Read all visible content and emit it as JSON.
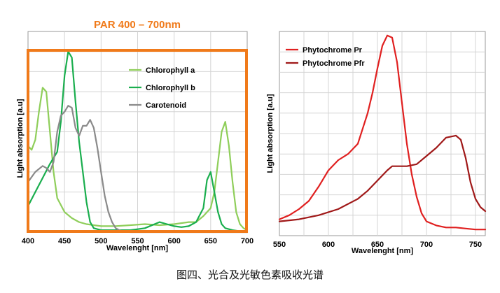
{
  "caption": "图四、光合及光敏色素吸收光谱",
  "chart_data": [
    {
      "type": "line",
      "annotation": "PAR 400 – 700nm",
      "annotation_color": "#f07a1a",
      "xlabel": "Wavelenght [nm]",
      "ylabel": "Light absorption [a.u]",
      "xlim": [
        400,
        700
      ],
      "xticks": [
        "400",
        "450",
        "500",
        "550",
        "600",
        "650",
        "700"
      ],
      "grid": true,
      "legend_position": "upper-center",
      "series": [
        {
          "name": "Chlorophyll a",
          "color": "#8fce5a",
          "x": [
            400,
            405,
            410,
            415,
            420,
            425,
            430,
            435,
            440,
            450,
            460,
            470,
            480,
            490,
            500,
            520,
            540,
            560,
            580,
            600,
            620,
            630,
            640,
            650,
            655,
            660,
            665,
            670,
            675,
            680,
            685,
            690,
            695,
            700
          ],
          "y": [
            0.43,
            0.41,
            0.46,
            0.6,
            0.72,
            0.7,
            0.5,
            0.3,
            0.17,
            0.1,
            0.07,
            0.05,
            0.04,
            0.035,
            0.03,
            0.03,
            0.035,
            0.04,
            0.035,
            0.04,
            0.05,
            0.05,
            0.08,
            0.12,
            0.2,
            0.35,
            0.5,
            0.55,
            0.43,
            0.25,
            0.1,
            0.04,
            0.02,
            0.01
          ]
        },
        {
          "name": "Chlorophyll b",
          "color": "#1aae4e",
          "x": [
            400,
            410,
            420,
            430,
            440,
            445,
            450,
            455,
            460,
            465,
            470,
            475,
            480,
            485,
            490,
            500,
            520,
            540,
            560,
            580,
            590,
            600,
            610,
            620,
            630,
            640,
            645,
            650,
            655,
            660,
            665,
            670,
            680,
            690,
            700
          ],
          "y": [
            0.13,
            0.2,
            0.27,
            0.34,
            0.4,
            0.55,
            0.78,
            0.9,
            0.87,
            0.65,
            0.45,
            0.3,
            0.15,
            0.05,
            0.02,
            0.01,
            0.01,
            0.01,
            0.02,
            0.05,
            0.04,
            0.03,
            0.025,
            0.03,
            0.05,
            0.12,
            0.26,
            0.3,
            0.2,
            0.1,
            0.04,
            0.02,
            0.01,
            0.005,
            0.0
          ]
        },
        {
          "name": "Carotenoid",
          "color": "#8a8a8a",
          "x": [
            400,
            410,
            420,
            425,
            430,
            435,
            440,
            445,
            450,
            455,
            460,
            465,
            470,
            475,
            480,
            485,
            490,
            495,
            500,
            505,
            510,
            515,
            520,
            525,
            530,
            540,
            560,
            600,
            650,
            700
          ],
          "y": [
            0.25,
            0.3,
            0.33,
            0.32,
            0.3,
            0.35,
            0.5,
            0.58,
            0.6,
            0.63,
            0.62,
            0.52,
            0.48,
            0.53,
            0.53,
            0.56,
            0.52,
            0.42,
            0.3,
            0.18,
            0.1,
            0.05,
            0.02,
            0.01,
            0.005,
            0.0,
            0.0,
            0.0,
            0.0,
            0.0
          ]
        }
      ]
    },
    {
      "type": "line",
      "xlabel": "Wavelenght [nm]",
      "ylabel": "Light absorption [a.u]",
      "xlim": [
        550,
        760
      ],
      "xticks": [
        "550",
        "600",
        "650",
        "700",
        "750"
      ],
      "grid": true,
      "legend_position": "top-left",
      "series": [
        {
          "name": "Phytochrome Pr",
          "color": "#e02020",
          "x": [
            550,
            560,
            570,
            580,
            590,
            600,
            610,
            620,
            630,
            640,
            645,
            650,
            655,
            660,
            665,
            670,
            675,
            680,
            685,
            690,
            695,
            700,
            710,
            720,
            730,
            740,
            750,
            760
          ],
          "y": [
            0.08,
            0.1,
            0.13,
            0.17,
            0.24,
            0.32,
            0.37,
            0.4,
            0.45,
            0.6,
            0.7,
            0.82,
            0.93,
            0.98,
            0.97,
            0.85,
            0.65,
            0.45,
            0.3,
            0.19,
            0.11,
            0.07,
            0.05,
            0.04,
            0.04,
            0.035,
            0.03,
            0.03
          ]
        },
        {
          "name": "Phytochrome Pfr",
          "color": "#a01818",
          "x": [
            550,
            570,
            590,
            610,
            630,
            640,
            650,
            660,
            665,
            670,
            680,
            690,
            700,
            710,
            720,
            730,
            735,
            740,
            745,
            750,
            755,
            760
          ],
          "y": [
            0.07,
            0.08,
            0.1,
            0.13,
            0.18,
            0.22,
            0.27,
            0.32,
            0.34,
            0.34,
            0.34,
            0.35,
            0.39,
            0.43,
            0.48,
            0.49,
            0.47,
            0.38,
            0.26,
            0.18,
            0.14,
            0.12
          ]
        }
      ]
    }
  ]
}
